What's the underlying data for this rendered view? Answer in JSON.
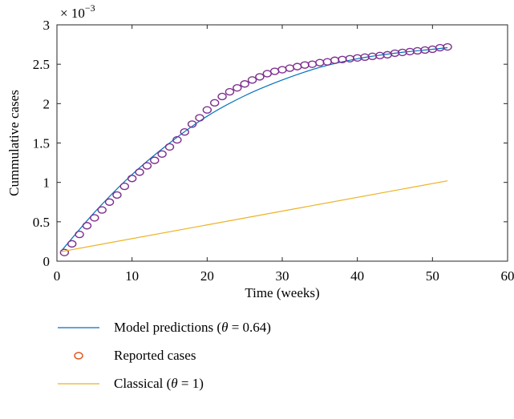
{
  "chart_data": {
    "type": "line",
    "xlabel": "Time (weeks)",
    "ylabel": "Cummulative cases",
    "y_exponent_label": "× 10",
    "y_exponent_power": "−3",
    "xlim": [
      0,
      60
    ],
    "ylim": [
      0,
      3
    ],
    "x_ticks": [
      "0",
      "10",
      "20",
      "30",
      "40",
      "50",
      "60"
    ],
    "y_ticks": [
      "0",
      "0.5",
      "1",
      "1.5",
      "2",
      "2.5",
      "3"
    ],
    "grid": false,
    "legend_position": "below",
    "series": [
      {
        "name": "Model predictions (θ = 0.64)",
        "kind": "line",
        "color": "#0072BD",
        "x": [
          0.5,
          5,
          10,
          15,
          20,
          25,
          30,
          35,
          40,
          45,
          50,
          52
        ],
        "y": [
          0.12,
          0.62,
          1.1,
          1.5,
          1.84,
          2.1,
          2.3,
          2.46,
          2.57,
          2.64,
          2.69,
          2.71
        ]
      },
      {
        "name": "Reported cases",
        "kind": "markers",
        "color": "#7E2F8E",
        "legend_color": "#D95319",
        "x": [
          1,
          2,
          3,
          4,
          5,
          6,
          7,
          8,
          9,
          10,
          11,
          12,
          13,
          14,
          15,
          16,
          17,
          18,
          19,
          20,
          21,
          22,
          23,
          24,
          25,
          26,
          27,
          28,
          29,
          30,
          31,
          32,
          33,
          34,
          35,
          36,
          37,
          38,
          39,
          40,
          41,
          42,
          43,
          44,
          45,
          46,
          47,
          48,
          49,
          50,
          51,
          52
        ],
        "y": [
          0.11,
          0.22,
          0.34,
          0.45,
          0.55,
          0.65,
          0.75,
          0.84,
          0.95,
          1.05,
          1.13,
          1.21,
          1.28,
          1.36,
          1.45,
          1.54,
          1.64,
          1.74,
          1.82,
          1.92,
          2.01,
          2.09,
          2.15,
          2.2,
          2.25,
          2.3,
          2.34,
          2.38,
          2.41,
          2.43,
          2.45,
          2.47,
          2.49,
          2.5,
          2.52,
          2.53,
          2.55,
          2.56,
          2.57,
          2.58,
          2.59,
          2.6,
          2.61,
          2.62,
          2.64,
          2.65,
          2.66,
          2.67,
          2.68,
          2.69,
          2.71,
          2.72
        ]
      },
      {
        "name": "Classical (θ = 1)",
        "kind": "line",
        "color": "#EDB120",
        "x": [
          0.5,
          52
        ],
        "y": [
          0.12,
          1.02
        ]
      }
    ]
  },
  "legend": {
    "model_prefix": "Model predictions (",
    "model_theta": "θ",
    "model_suffix": " = 0.64)",
    "reported_label": "Reported cases",
    "classical_prefix": "Classical (",
    "classical_theta": "θ",
    "classical_suffix": " = 1)"
  }
}
